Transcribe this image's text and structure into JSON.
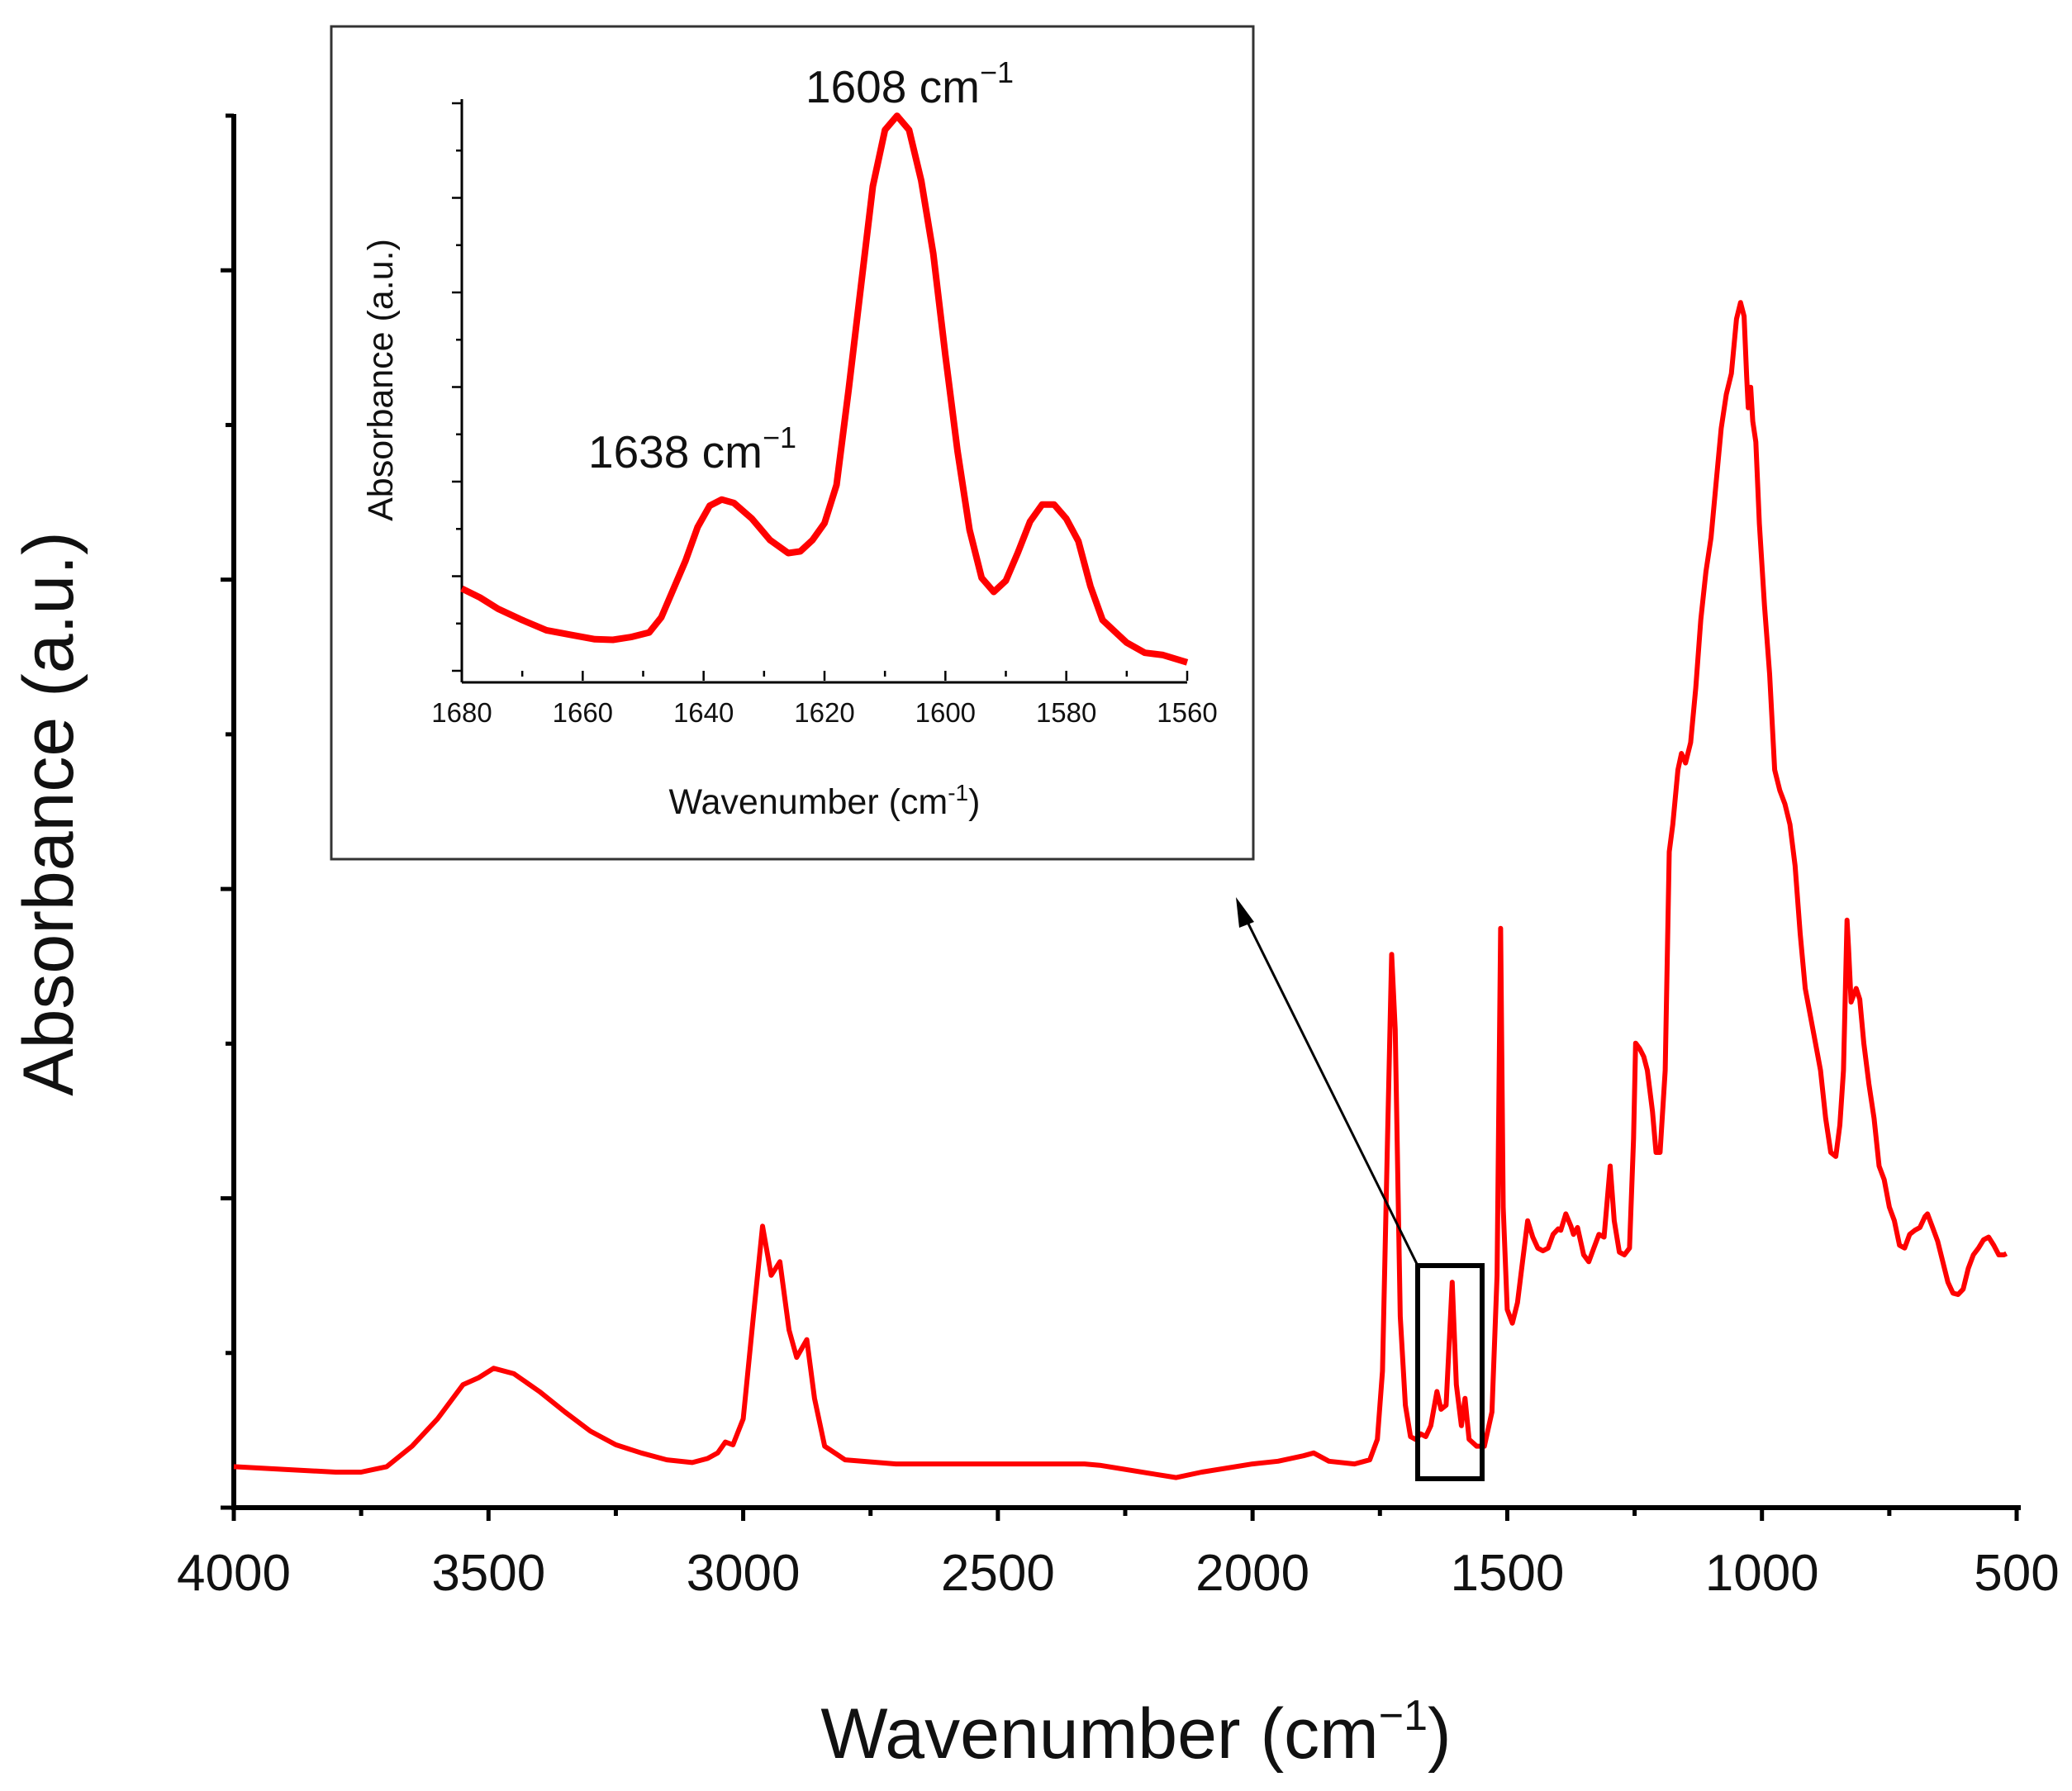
{
  "chart_data": [
    {
      "id": "main",
      "type": "line",
      "title": "",
      "xlabel": "Wavenumber (cm",
      "xlabel_superscript": "−1",
      "xlabel_close": ")",
      "ylabel": "Absorbance (a.u.)",
      "xlim": [
        4000,
        500
      ],
      "ylim": [
        -0.02,
        1.0
      ],
      "x_reversed": true,
      "grid": false,
      "xticks": [
        4000,
        3500,
        3000,
        2500,
        2000,
        1500,
        1000,
        500
      ],
      "xtick_labels": [
        "4000",
        "3500",
        "3000",
        "2500",
        "2000",
        "1500",
        "1000",
        "500"
      ],
      "yticks_shown_without_labels": true,
      "series": [
        {
          "name": "spectrum",
          "color": "#ff0000",
          "points": [
            [
              4000,
              0.01
            ],
            [
              3900,
              0.008
            ],
            [
              3800,
              0.006
            ],
            [
              3750,
              0.006
            ],
            [
              3700,
              0.01
            ],
            [
              3650,
              0.025
            ],
            [
              3600,
              0.045
            ],
            [
              3550,
              0.07
            ],
            [
              3520,
              0.075
            ],
            [
              3490,
              0.082
            ],
            [
              3450,
              0.078
            ],
            [
              3400,
              0.065
            ],
            [
              3350,
              0.05
            ],
            [
              3300,
              0.036
            ],
            [
              3250,
              0.026
            ],
            [
              3200,
              0.02
            ],
            [
              3150,
              0.015
            ],
            [
              3100,
              0.013
            ],
            [
              3070,
              0.016
            ],
            [
              3050,
              0.02
            ],
            [
              3035,
              0.028
            ],
            [
              3020,
              0.026
            ],
            [
              3000,
              0.045
            ],
            [
              2980,
              0.12
            ],
            [
              2962,
              0.186
            ],
            [
              2945,
              0.15
            ],
            [
              2928,
              0.16
            ],
            [
              2910,
              0.11
            ],
            [
              2895,
              0.09
            ],
            [
              2875,
              0.103
            ],
            [
              2860,
              0.06
            ],
            [
              2840,
              0.025
            ],
            [
              2800,
              0.015
            ],
            [
              2700,
              0.012
            ],
            [
              2600,
              0.012
            ],
            [
              2500,
              0.012
            ],
            [
              2400,
              0.012
            ],
            [
              2330,
              0.012
            ],
            [
              2300,
              0.011
            ],
            [
              2200,
              0.005
            ],
            [
              2150,
              0.002
            ],
            [
              2100,
              0.006
            ],
            [
              2000,
              0.012
            ],
            [
              1950,
              0.014
            ],
            [
              1900,
              0.018
            ],
            [
              1880,
              0.02
            ],
            [
              1850,
              0.014
            ],
            [
              1800,
              0.012
            ],
            [
              1770,
              0.015
            ],
            [
              1755,
              0.03
            ],
            [
              1745,
              0.08
            ],
            [
              1735,
              0.25
            ],
            [
              1727,
              0.385
            ],
            [
              1720,
              0.33
            ],
            [
              1710,
              0.12
            ],
            [
              1700,
              0.055
            ],
            [
              1690,
              0.032
            ],
            [
              1680,
              0.03
            ],
            [
              1670,
              0.034
            ],
            [
              1660,
              0.032
            ],
            [
              1650,
              0.04
            ],
            [
              1638,
              0.065
            ],
            [
              1630,
              0.052
            ],
            [
              1620,
              0.055
            ],
            [
              1608,
              0.145
            ],
            [
              1600,
              0.07
            ],
            [
              1590,
              0.04
            ],
            [
              1583,
              0.06
            ],
            [
              1575,
              0.03
            ],
            [
              1560,
              0.025
            ],
            [
              1545,
              0.025
            ],
            [
              1530,
              0.05
            ],
            [
              1520,
              0.15
            ],
            [
              1513,
              0.404
            ],
            [
              1508,
              0.2
            ],
            [
              1500,
              0.125
            ],
            [
              1490,
              0.115
            ],
            [
              1480,
              0.13
            ],
            [
              1470,
              0.16
            ],
            [
              1460,
              0.19
            ],
            [
              1450,
              0.178
            ],
            [
              1440,
              0.17
            ],
            [
              1430,
              0.168
            ],
            [
              1420,
              0.17
            ],
            [
              1410,
              0.18
            ],
            [
              1400,
              0.184
            ],
            [
              1395,
              0.183
            ],
            [
              1385,
              0.195
            ],
            [
              1375,
              0.186
            ],
            [
              1370,
              0.18
            ],
            [
              1362,
              0.185
            ],
            [
              1350,
              0.165
            ],
            [
              1340,
              0.16
            ],
            [
              1330,
              0.17
            ],
            [
              1320,
              0.18
            ],
            [
              1310,
              0.178
            ],
            [
              1298,
              0.23
            ],
            [
              1290,
              0.19
            ],
            [
              1280,
              0.167
            ],
            [
              1270,
              0.165
            ],
            [
              1260,
              0.17
            ],
            [
              1252,
              0.25
            ],
            [
              1248,
              0.32
            ],
            [
              1240,
              0.316
            ],
            [
              1232,
              0.31
            ],
            [
              1225,
              0.3
            ],
            [
              1215,
              0.27
            ],
            [
              1208,
              0.24
            ],
            [
              1200,
              0.24
            ],
            [
              1190,
              0.3
            ],
            [
              1182,
              0.46
            ],
            [
              1175,
              0.48
            ],
            [
              1165,
              0.52
            ],
            [
              1158,
              0.532
            ],
            [
              1150,
              0.525
            ],
            [
              1140,
              0.54
            ],
            [
              1130,
              0.58
            ],
            [
              1120,
              0.63
            ],
            [
              1110,
              0.665
            ],
            [
              1100,
              0.69
            ],
            [
              1090,
              0.73
            ],
            [
              1080,
              0.77
            ],
            [
              1070,
              0.795
            ],
            [
              1060,
              0.81
            ],
            [
              1050,
              0.85
            ],
            [
              1042,
              0.862
            ],
            [
              1035,
              0.852
            ],
            [
              1030,
              0.808
            ],
            [
              1027,
              0.785
            ],
            [
              1022,
              0.8
            ],
            [
              1018,
              0.775
            ],
            [
              1012,
              0.76
            ],
            [
              1005,
              0.7
            ],
            [
              995,
              0.64
            ],
            [
              985,
              0.59
            ],
            [
              975,
              0.52
            ],
            [
              965,
              0.505
            ],
            [
              955,
              0.495
            ],
            [
              945,
              0.48
            ],
            [
              935,
              0.45
            ],
            [
              925,
              0.4
            ],
            [
              915,
              0.36
            ],
            [
              905,
              0.34
            ],
            [
              895,
              0.32
            ],
            [
              885,
              0.3
            ],
            [
              875,
              0.265
            ],
            [
              865,
              0.24
            ],
            [
              855,
              0.237
            ],
            [
              847,
              0.26
            ],
            [
              840,
              0.3
            ],
            [
              833,
              0.41
            ],
            [
              830,
              0.39
            ],
            [
              825,
              0.35
            ],
            [
              815,
              0.36
            ],
            [
              808,
              0.352
            ],
            [
              800,
              0.32
            ],
            [
              790,
              0.29
            ],
            [
              780,
              0.265
            ],
            [
              770,
              0.23
            ],
            [
              760,
              0.22
            ],
            [
              750,
              0.2
            ],
            [
              740,
              0.19
            ],
            [
              730,
              0.172
            ],
            [
              720,
              0.17
            ],
            [
              710,
              0.18
            ],
            [
              700,
              0.183
            ],
            [
              690,
              0.185
            ],
            [
              680,
              0.193
            ],
            [
              675,
              0.195
            ],
            [
              665,
              0.185
            ],
            [
              655,
              0.175
            ],
            [
              645,
              0.16
            ],
            [
              635,
              0.145
            ],
            [
              625,
              0.137
            ],
            [
              615,
              0.136
            ],
            [
              605,
              0.14
            ],
            [
              595,
              0.155
            ],
            [
              585,
              0.165
            ],
            [
              575,
              0.17
            ],
            [
              565,
              0.176
            ],
            [
              555,
              0.178
            ],
            [
              545,
              0.172
            ],
            [
              535,
              0.165
            ],
            [
              525,
              0.165
            ],
            [
              520,
              0.166
            ]
          ]
        }
      ]
    },
    {
      "id": "inset",
      "type": "line",
      "title": "",
      "xlabel": "Wavenumber (cm",
      "xlabel_superscript": "-1",
      "xlabel_close": ")",
      "ylabel": "Absorbance (a.u.)",
      "xlim": [
        1680,
        1560
      ],
      "ylim": [
        0,
        1.0
      ],
      "x_reversed": true,
      "grid": false,
      "xticks": [
        1680,
        1660,
        1640,
        1620,
        1600,
        1580,
        1560
      ],
      "xtick_labels": [
        "1680",
        "1660",
        "1640",
        "1620",
        "1600",
        "1580",
        "1560"
      ],
      "annotations": [
        {
          "label": "1638 cm",
          "sup": "−1",
          "x": 1638
        },
        {
          "label": "1608 cm",
          "sup": "−1",
          "x": 1608
        }
      ],
      "series": [
        {
          "name": "spectrum-zoom",
          "color": "#ff0000",
          "points": [
            [
              1680,
              0.146
            ],
            [
              1677,
              0.13
            ],
            [
              1674,
              0.11
            ],
            [
              1670,
              0.09
            ],
            [
              1666,
              0.072
            ],
            [
              1662,
              0.064
            ],
            [
              1658,
              0.056
            ],
            [
              1655,
              0.055
            ],
            [
              1652,
              0.06
            ],
            [
              1649,
              0.068
            ],
            [
              1647,
              0.095
            ],
            [
              1645,
              0.145
            ],
            [
              1643,
              0.195
            ],
            [
              1641,
              0.255
            ],
            [
              1639,
              0.293
            ],
            [
              1637,
              0.304
            ],
            [
              1635,
              0.298
            ],
            [
              1632,
              0.27
            ],
            [
              1629,
              0.232
            ],
            [
              1626,
              0.209
            ],
            [
              1624,
              0.212
            ],
            [
              1622,
              0.232
            ],
            [
              1620,
              0.262
            ],
            [
              1618,
              0.33
            ],
            [
              1616,
              0.5
            ],
            [
              1614,
              0.68
            ],
            [
              1612,
              0.86
            ],
            [
              1610,
              0.96
            ],
            [
              1608,
              0.985
            ],
            [
              1606,
              0.96
            ],
            [
              1604,
              0.87
            ],
            [
              1602,
              0.74
            ],
            [
              1600,
              0.56
            ],
            [
              1598,
              0.39
            ],
            [
              1596,
              0.25
            ],
            [
              1594,
              0.165
            ],
            [
              1592,
              0.14
            ],
            [
              1590,
              0.16
            ],
            [
              1588,
              0.21
            ],
            [
              1586,
              0.265
            ],
            [
              1584,
              0.295
            ],
            [
              1582,
              0.295
            ],
            [
              1580,
              0.27
            ],
            [
              1578,
              0.23
            ],
            [
              1576,
              0.15
            ],
            [
              1574,
              0.09
            ],
            [
              1572,
              0.07
            ],
            [
              1570,
              0.05
            ],
            [
              1567,
              0.032
            ],
            [
              1564,
              0.028
            ],
            [
              1560,
              0.015
            ]
          ]
        }
      ]
    }
  ]
}
